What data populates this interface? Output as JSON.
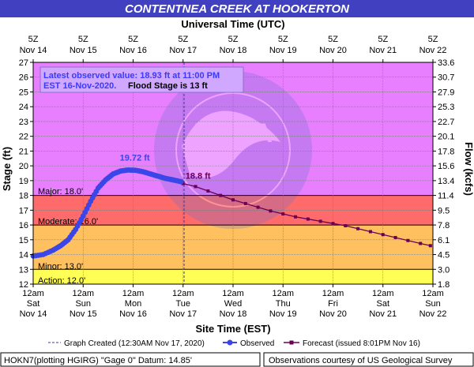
{
  "title": "CONTENTNEA CREEK AT HOOKERTON",
  "top_axis_title": "Universal Time (UTC)",
  "bottom_axis_title": "Site Time (EST)",
  "y_left_title": "Stage (ft)",
  "y_right_title": "Flow (kcfs)",
  "info": {
    "line1": "Latest observed value: 18.93 ft at 11:00 PM",
    "line2a": "EST 16-Nov-2020.",
    "line2b": "Flood Stage is 13 ft"
  },
  "stage_labels": {
    "major": "Major: 18.0'",
    "moderate": "Moderate: 16.0'",
    "minor": "Minor: 13.0'",
    "action": "Action: 12.0'"
  },
  "legend": {
    "graph_created": "Graph Created (12:30AM Nov 17, 2020)",
    "observed": "Observed",
    "forecast": "Forecast (issued 8:01PM Nov 16)"
  },
  "footer": {
    "left": "HOKN7(plotting HGIRG) \"Gage 0\" Datum: 14.85'",
    "right": "Observations courtesy of US Geological Survey"
  },
  "colors": {
    "title_bg": "#4040c0",
    "major": "#e77fff",
    "moderate": "#ff6a6a",
    "minor": "#ffc060",
    "action": "#ffff55",
    "normal": "#ffffff",
    "observed": "#3a46e8",
    "forecast": "#6a0055",
    "info_box_bg": "#d0a8ff",
    "info_text": "#3a3aff",
    "watermark": "noaa-logo"
  },
  "chart_data": {
    "type": "line",
    "ylim": [
      12,
      27
    ],
    "y_ticks": [
      12,
      13,
      14,
      15,
      16,
      17,
      18,
      19,
      20,
      21,
      22,
      23,
      24,
      25,
      26,
      27
    ],
    "flow_ticks": [
      "1.8",
      "3.0",
      "4.5",
      "6.1",
      "7.8",
      "9.5",
      "11.4",
      "13.4",
      "15.6",
      "17.8",
      "20.1",
      "22.7",
      "25.3",
      "27.9",
      "30.7",
      "33.6"
    ],
    "bottom_ticks": [
      {
        "d": 0,
        "t1": "12am",
        "t2": "Sat",
        "t3": "Nov 14"
      },
      {
        "d": 1,
        "t1": "12am",
        "t2": "Sun",
        "t3": "Nov 15"
      },
      {
        "d": 2,
        "t1": "12am",
        "t2": "Mon",
        "t3": "Nov 16"
      },
      {
        "d": 3,
        "t1": "12am",
        "t2": "Tue",
        "t3": "Nov 17"
      },
      {
        "d": 4,
        "t1": "12am",
        "t2": "Wed",
        "t3": "Nov 18"
      },
      {
        "d": 5,
        "t1": "12am",
        "t2": "Thu",
        "t3": "Nov 19"
      },
      {
        "d": 6,
        "t1": "12am",
        "t2": "Fri",
        "t3": "Nov 20"
      },
      {
        "d": 7,
        "t1": "12am",
        "t2": "Sat",
        "t3": "Nov 21"
      },
      {
        "d": 8,
        "t1": "12am",
        "t2": "Sun",
        "t3": "Nov 22"
      }
    ],
    "top_ticks": [
      {
        "d": 0,
        "t1": "5Z",
        "t2": "Nov 14"
      },
      {
        "d": 1,
        "t1": "5Z",
        "t2": "Nov 15"
      },
      {
        "d": 2,
        "t1": "5Z",
        "t2": "Nov 16"
      },
      {
        "d": 3,
        "t1": "5Z",
        "t2": "Nov 17"
      },
      {
        "d": 4,
        "t1": "5Z",
        "t2": "Nov 18"
      },
      {
        "d": 5,
        "t1": "5Z",
        "t2": "Nov 19"
      },
      {
        "d": 6,
        "t1": "5Z",
        "t2": "Nov 20"
      },
      {
        "d": 7,
        "t1": "5Z",
        "t2": "Nov 21"
      },
      {
        "d": 8,
        "t1": "5Z",
        "t2": "Nov 22"
      }
    ],
    "flood_categories": [
      {
        "name": "action",
        "from": 12,
        "to": 13
      },
      {
        "name": "minor",
        "from": 13,
        "to": 16
      },
      {
        "name": "moderate",
        "from": 16,
        "to": 18
      },
      {
        "name": "major",
        "from": 18,
        "to": 27
      }
    ],
    "graph_created_day": 3.02,
    "observed": {
      "name": "Observed",
      "x": [
        0.0,
        0.2,
        0.4,
        0.55,
        0.7,
        0.85,
        1.0,
        1.15,
        1.3,
        1.45,
        1.6,
        1.75,
        1.9,
        2.05,
        2.2,
        2.35,
        2.5,
        2.65,
        2.8,
        2.96
      ],
      "y": [
        13.9,
        14.0,
        14.3,
        14.6,
        15.0,
        15.7,
        16.6,
        17.6,
        18.5,
        19.05,
        19.45,
        19.65,
        19.72,
        19.7,
        19.6,
        19.45,
        19.3,
        19.15,
        19.05,
        18.93
      ]
    },
    "forecast": {
      "name": "Forecast (issued 8:01PM Nov 16)",
      "x": [
        3.0,
        3.25,
        3.5,
        3.75,
        4.0,
        4.25,
        4.5,
        4.75,
        5.0,
        5.25,
        5.5,
        5.75,
        6.0,
        6.25,
        6.5,
        6.75,
        7.0,
        7.25,
        7.5,
        7.75,
        7.95
      ],
      "y": [
        18.8,
        18.6,
        18.3,
        18.0,
        17.7,
        17.45,
        17.2,
        16.95,
        16.75,
        16.55,
        16.4,
        16.25,
        16.1,
        15.95,
        15.75,
        15.55,
        15.35,
        15.15,
        14.95,
        14.75,
        14.6
      ]
    },
    "annotations": [
      {
        "label": "19.72 ft",
        "x": 2.05,
        "y": 19.72,
        "series": "observed"
      },
      {
        "label": "18.8 ft",
        "x": 3.0,
        "y": 18.8,
        "series": "forecast"
      }
    ]
  }
}
